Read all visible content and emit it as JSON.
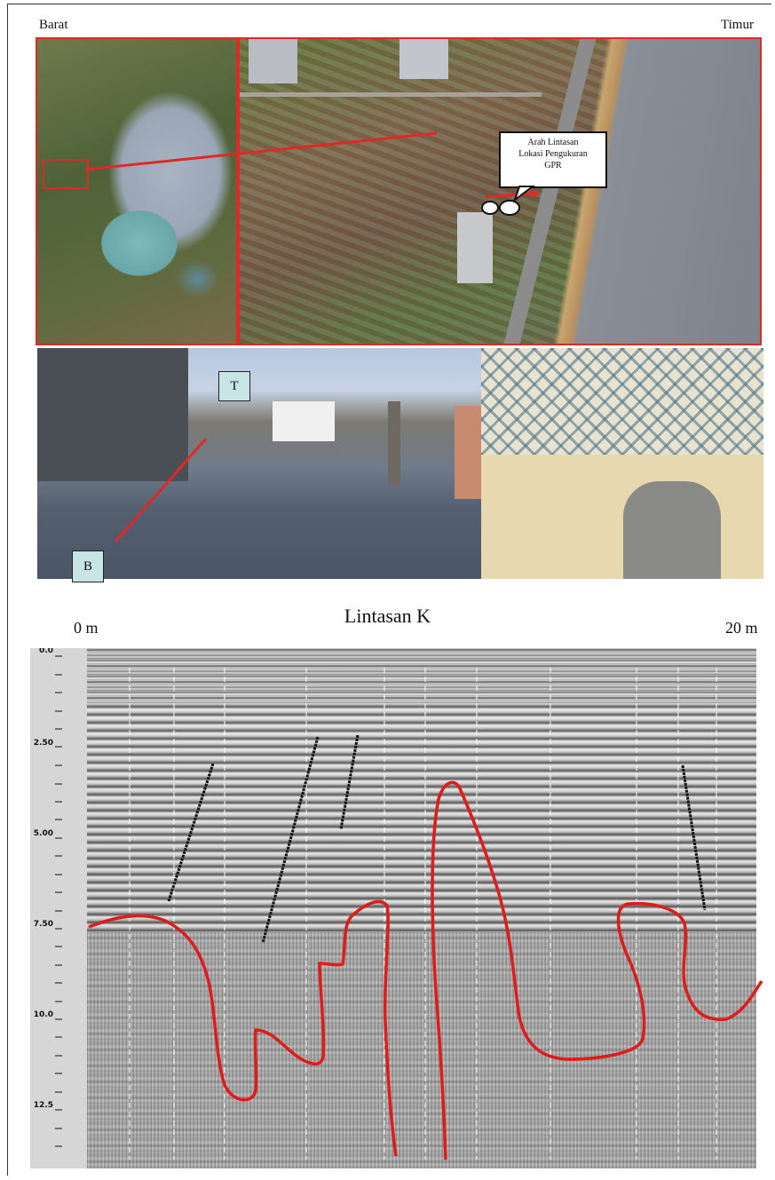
{
  "map_labels": {
    "west": "Barat",
    "east": "Timur",
    "callout_line1": "Arah Lintasan",
    "callout_line2": "Lokasi Pengukuran",
    "callout_line3": "GPR"
  },
  "photo_labels": {
    "start": "B",
    "end": "T"
  },
  "radargram": {
    "title": "Lintasan K",
    "x_start": "0 m",
    "x_end": "20 m",
    "depth_ticks": [
      "0.0",
      "2.50",
      "5.00",
      "7.50",
      "10.0",
      "12.5"
    ]
  },
  "colors": {
    "highlight": "#e02828",
    "interpretation": "#e01b1b",
    "fault_lines": "#111111"
  }
}
